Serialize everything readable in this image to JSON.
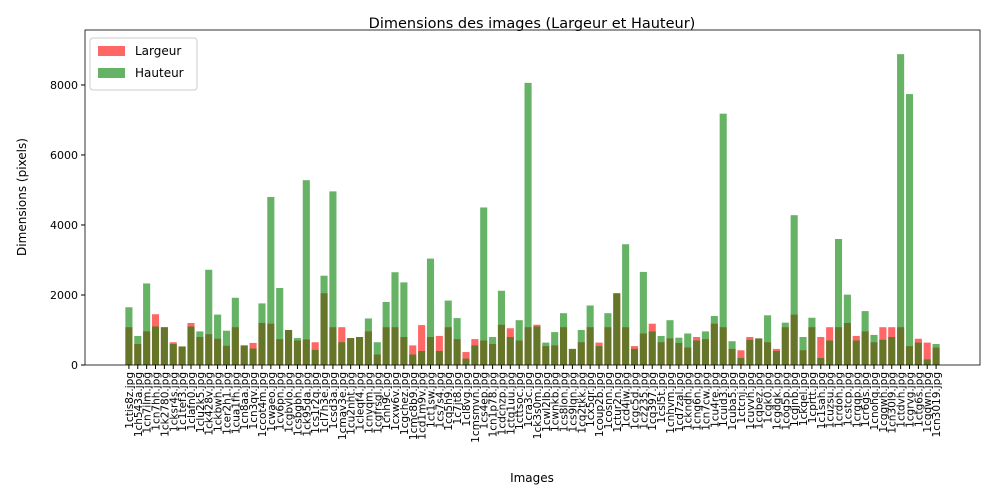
{
  "chart_data": {
    "type": "bar",
    "title": "Dimensions des images (Largeur et Hauteur)",
    "x_label": "Images",
    "y_label": "Dimensions (pixels)",
    "categories": [
      "1ctis8z.jpg",
      "1ch543a.jpg",
      "1cn7ilm.jpg",
      "1cn7hh.jpg",
      "1ck2780.jpg",
      "1cksr4s.jpg",
      "1c1tef3.jpg",
      "1clafn0.jpg",
      "1clu2k5.jpg",
      "1ck428v.jpg",
      "1ckbwh.jpg",
      "1cer2h1.jpg",
      "1cua1fh.jpg",
      "1cn8aa.jpg",
      "1cn3qv.jpg",
      "1ccot4m.jpg",
      "1cwaeo.jpg",
      "1cv6pn.jpg",
      "1cgbvlo.jpg",
      "1csbgbh.jpg",
      "1ck95da.jpg",
      "1cs1r2q.jpg",
      "1cl7h3e.jpg",
      "1csd3a.jpg",
      "1cmav3e.jpg",
      "1cu2nht.jpg",
      "1cleqf4.jpg",
      "1cnvqm.jpg",
      "1cgfrsgl.jpg",
      "1cnh9c.jpg",
      "1cxw6v.jpg",
      "1cgchez.jpg",
      "1cmc8b9.jpg",
      "1cd1m9v.jpg",
      "1ct1sw.jpg",
      "1cs7s4.jpg",
      "1cq5h9.jpg",
      "1c7jt8.jpg",
      "1cl8vg.jpg",
      "1cmsmvn.jpg",
      "1cs4ep.jpg",
      "1cn1p78.jpg",
      "1cdcnzp.jpg",
      "1ctq1uu.jpg",
      "1cttsoc.jpg",
      "1cra3c.jpg",
      "1ck3s0m.jpg",
      "1cwl2lb.jpg",
      "1cwnkb.jpg",
      "1cs8lon.jpg",
      "1cs9lqn.jpg",
      "1cq2tkk.jpg",
      "1cx5qr.jpg",
      "1coup2b.jpg",
      "1cosnn.jpg",
      "1ctur2n.jpg",
      "1cd4iw.jpg",
      "1cgc5d.jpg",
      "1cz235.jpg",
      "1cq397.jpg",
      "1csl5t.jpg",
      "1cnhvm.jpg",
      "1cd7zal.jpg",
      "1ckndh.jpg",
      "1cnq6n.jpg",
      "1cn7cw.jpg",
      "1cu4re.jpg",
      "1cuid3.jpg",
      "1cuba5.jpg",
      "1ctcnj.jpg",
      "1cuvvh.jpg",
      "1cqbez.jpg",
      "1cgk0.jpg",
      "1cgdqk.jpg",
      "1cog5p.jpg",
      "1cgjnb.jpg",
      "1ckqel.jpg",
      "1cprtt.jpg",
      "1c1sah.jpg",
      "1cuzsu.jpg",
      "1crdoh.jpg",
      "1cstcp.jpg",
      "1crgqp.jpg",
      "1cr6gs.jpg",
      "1cnohq.jpg",
      "1cgqwh.jpg",
      "1cn30l9.jpg",
      "1ctdvh.jpg",
      "1cgrvg.jpg",
      "1ctg6s.jpg",
      "1cgqwn.jpg",
      "1cn3019.jpg"
    ],
    "series": [
      {
        "name": "Largeur",
        "color": "#ff0000",
        "values": [
          1080,
          600,
          960,
          1450,
          1080,
          650,
          530,
          1200,
          800,
          880,
          750,
          550,
          1080,
          560,
          630,
          1200,
          1180,
          740,
          1000,
          700,
          730,
          650,
          2050,
          1080,
          1080,
          770,
          800,
          960,
          300,
          1080,
          1080,
          800,
          560,
          1140,
          800,
          830,
          1080,
          740,
          370,
          740,
          700,
          600,
          1150,
          1050,
          700,
          1080,
          1150,
          540,
          560,
          1080,
          460,
          650,
          1080,
          640,
          1080,
          2050,
          1080,
          540,
          900,
          1180,
          650,
          760,
          630,
          500,
          800,
          740,
          1180,
          1080,
          460,
          420,
          800,
          760,
          650,
          460,
          1080,
          1440,
          420,
          1080,
          800,
          1080,
          1080,
          1200,
          830,
          960,
          650,
          1080,
          1080,
          1080,
          540,
          750,
          640,
          500
        ]
      },
      {
        "name": "Hauteur",
        "color": "#008000",
        "values": [
          1650,
          830,
          2330,
          1100,
          1080,
          600,
          530,
          1100,
          960,
          2720,
          1440,
          980,
          1920,
          560,
          470,
          1760,
          4800,
          2200,
          1000,
          770,
          5280,
          430,
          2550,
          4960,
          650,
          770,
          800,
          1330,
          650,
          1800,
          2650,
          2360,
          300,
          400,
          3040,
          400,
          1840,
          1340,
          180,
          560,
          4500,
          800,
          2120,
          800,
          1280,
          8060,
          1100,
          640,
          940,
          1480,
          460,
          1000,
          1700,
          540,
          1480,
          2050,
          3450,
          460,
          2660,
          960,
          830,
          1280,
          780,
          900,
          700,
          960,
          1400,
          7180,
          680,
          200,
          720,
          760,
          1420,
          400,
          1210,
          4280,
          800,
          1350,
          200,
          700,
          3600,
          2010,
          700,
          1540,
          860,
          720,
          800,
          8880,
          7740,
          640,
          160,
          600
        ]
      }
    ],
    "ylim": [
      0,
      9570
    ],
    "yticks": [
      0,
      2000,
      4000,
      6000,
      8000
    ],
    "opacity": 0.6,
    "legend": "upper left"
  }
}
